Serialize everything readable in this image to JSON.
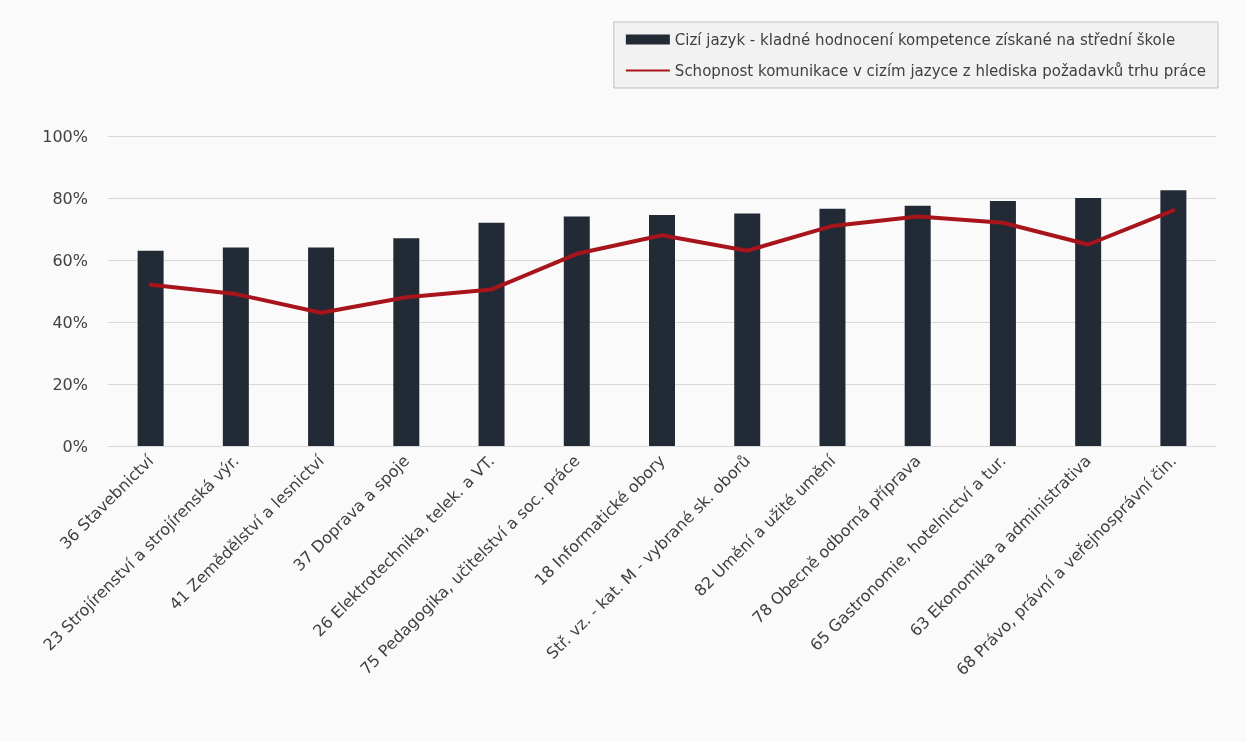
{
  "chart_data": {
    "type": "bar",
    "categories": [
      "36 Stavebnictví",
      "23 Strojírenství a strojírenská výr.",
      "41 Zemědělství a lesnictví",
      "37 Doprava a spoje",
      "26 Elektrotechnika, telek. a VT.",
      "75 Pedagogika, učitelství a soc. práce",
      "18 Informatické obory",
      "Stř. vz. - kat. M - vybrané sk. oborů",
      "82 Umění a užité umění",
      "78 Obecně odborná příprava",
      "65 Gastronomie, hotelnictví a tur.",
      "63 Ekonomika a administrativa",
      "68 Právo, právní a veřejnosprávní čin."
    ],
    "series": [
      {
        "name": "Cizí jazyk - kladné hodnocení kompetence získané na střední škole",
        "color": "#222a35",
        "values": [
          63,
          64,
          64,
          67,
          72,
          74,
          74.5,
          75,
          76.5,
          77.5,
          79,
          80,
          82.5
        ]
      },
      {
        "name": "Schopnost komunikace v cizím jazyce z hlediska požadavků trhu práce",
        "type": "line",
        "color": "#a8141b",
        "values": [
          52,
          49,
          43,
          48,
          50.5,
          62,
          68,
          63,
          71,
          74,
          72,
          65,
          76
        ]
      }
    ],
    "ylim": [
      0,
      100
    ],
    "yticks": [
      {
        "value": 0,
        "label": "0%"
      },
      {
        "value": 20,
        "label": "20%"
      },
      {
        "value": 40,
        "label": "40%"
      },
      {
        "value": 60,
        "label": "60%"
      },
      {
        "value": 80,
        "label": "80%"
      },
      {
        "value": 100,
        "label": "100%"
      }
    ],
    "grid": "y",
    "legend": "top right",
    "marker": "none",
    "line_style": "solid"
  }
}
